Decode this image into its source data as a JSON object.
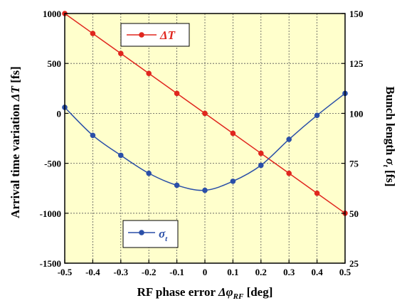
{
  "chart_data": {
    "type": "line",
    "x": [
      -0.5,
      -0.4,
      -0.3,
      -0.2,
      -0.1,
      0,
      0.1,
      0.2,
      0.3,
      0.4,
      0.5
    ],
    "xlim": [
      -0.5,
      0.5
    ],
    "xticks": [
      "-0.5",
      "-0.4",
      "-0.3",
      "-0.2",
      "-0.1",
      "0",
      "0.1",
      "0.2",
      "0.3",
      "0.4",
      "0.5"
    ],
    "xlabel": {
      "prefix": "RF phase error ",
      "symbol": "Δφ",
      "subscript": "RF",
      "suffix": " [deg]"
    },
    "ylim_left": [
      -1500,
      1000
    ],
    "yticks_left": [
      "1000",
      "500",
      "0",
      "-500",
      "-1000",
      "-1500"
    ],
    "ylabel_left": {
      "prefix": "Arrival time variation  ",
      "symbol": "ΔT",
      "suffix": " [fs]"
    },
    "ylim_right": [
      25,
      150
    ],
    "yticks_right": [
      "150",
      "125",
      "100",
      "75",
      "50",
      "25"
    ],
    "ylabel_right": {
      "prefix": "Bunch length ",
      "symbol": "σ",
      "subscript": "t",
      "suffix": " [fs]"
    },
    "grid": true,
    "background_color": "#FFFFCC",
    "series": [
      {
        "name": "ΔT",
        "axis": "left",
        "color": "#E0261E",
        "values": [
          1000,
          800,
          600,
          400,
          200,
          0,
          -200,
          -400,
          -600,
          -800,
          -1000
        ]
      },
      {
        "name": "σt",
        "axis": "right",
        "name_symbol": "σ",
        "name_subscript": "t",
        "color": "#2A4FA8",
        "values": [
          103,
          89,
          79,
          70,
          64,
          61.5,
          66,
          74,
          87,
          99,
          110
        ]
      }
    ],
    "legend": [
      {
        "series": 0,
        "placement": "top-center"
      },
      {
        "series": 1,
        "placement": "bottom-left"
      }
    ]
  }
}
